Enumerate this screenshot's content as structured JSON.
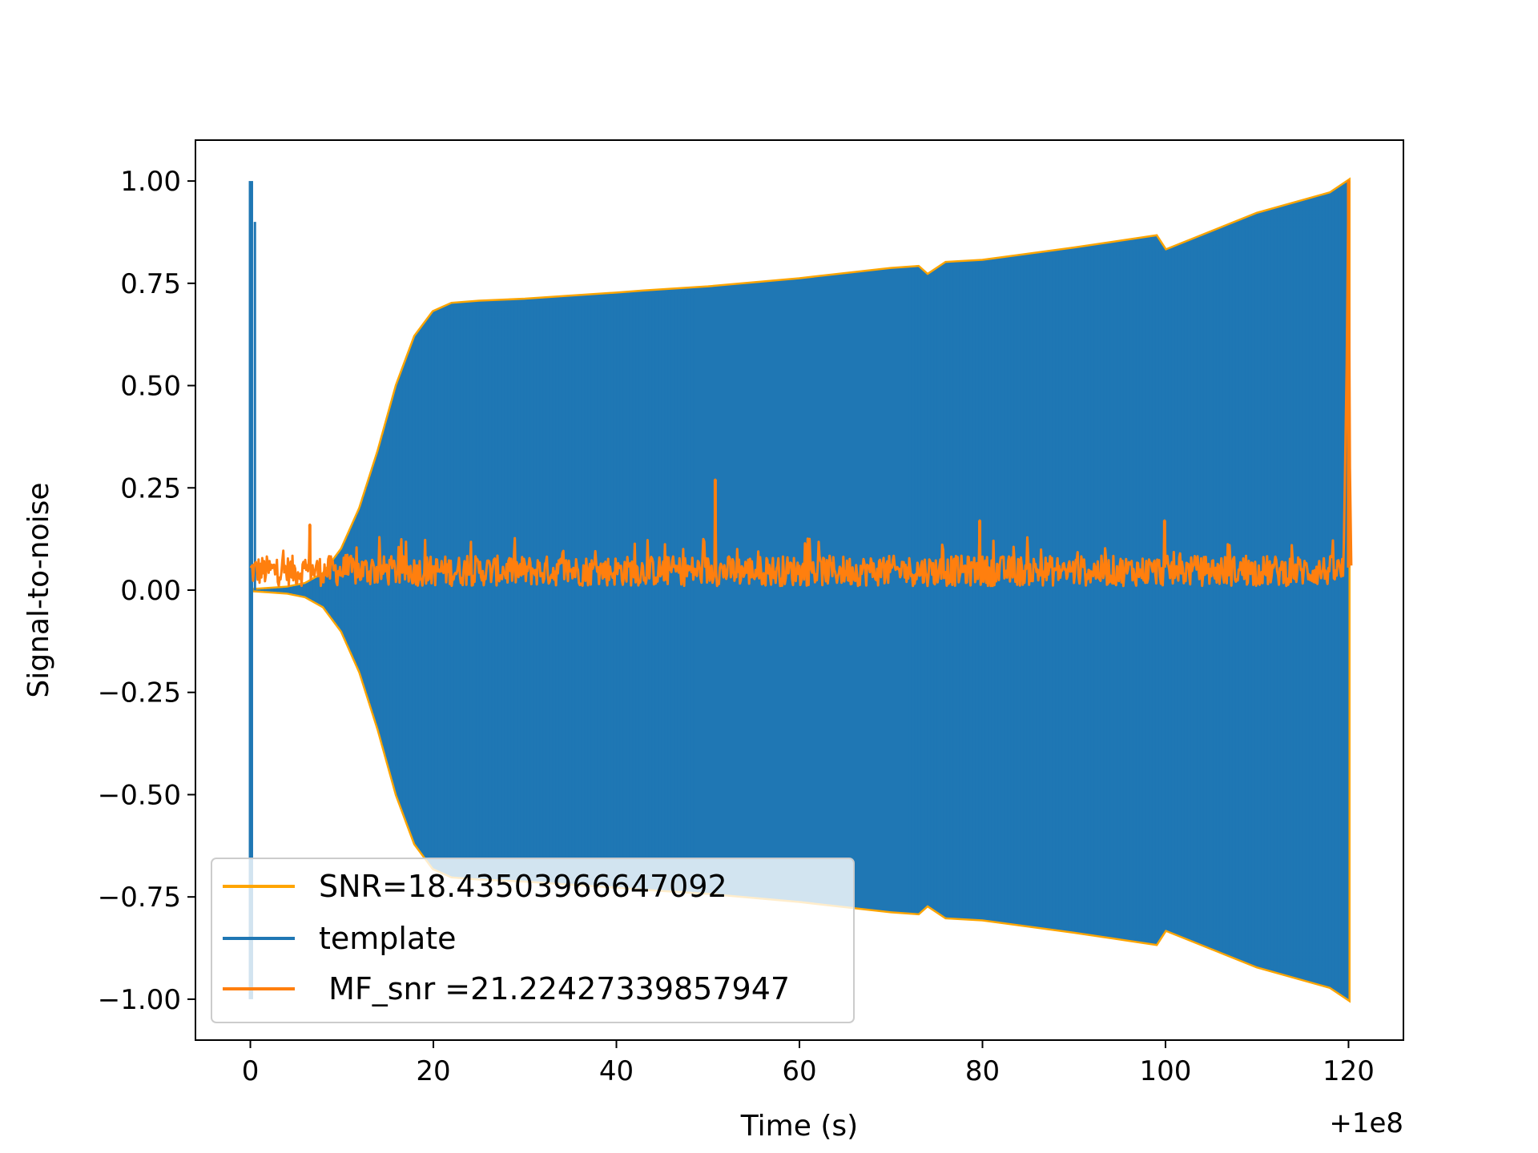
{
  "chart_data": {
    "type": "line",
    "title": "",
    "xlabel": "Time (s)",
    "ylabel": "Signal-to-noise",
    "x_offset_label": "+1e8",
    "xlim": [
      -6,
      126
    ],
    "ylim": [
      -1.1,
      1.1
    ],
    "xticks": [
      0,
      20,
      40,
      60,
      80,
      100,
      120
    ],
    "xtick_labels": [
      "0",
      "20",
      "40",
      "60",
      "80",
      "100",
      "120"
    ],
    "yticks": [
      1.0,
      0.75,
      0.5,
      0.25,
      0.0,
      -0.25,
      -0.5,
      -0.75,
      -1.0
    ],
    "ytick_labels": [
      "1.00",
      "0.75",
      "0.50",
      "0.25",
      "0.00",
      "−0.25",
      "−0.50",
      "−0.75",
      "−1.00"
    ],
    "grid": false,
    "legend_position": "lower-left",
    "colors": {
      "snr_envelope": "#FFA500",
      "template": "#1f77b4",
      "mf_snr": "#ff7f0e"
    },
    "series": [
      {
        "name": "SNR=18.43503966647092",
        "kind": "envelope",
        "x": [
          0,
          2,
          4,
          6,
          8,
          10,
          12,
          14,
          16,
          18,
          20,
          22,
          25,
          30,
          40,
          43,
          50,
          60,
          70,
          73,
          74,
          76,
          80,
          90,
          99,
          100,
          110,
          118,
          120
        ],
        "upper": [
          0.0,
          0.003,
          0.006,
          0.015,
          0.04,
          0.1,
          0.2,
          0.34,
          0.5,
          0.62,
          0.68,
          0.7,
          0.705,
          0.71,
          0.725,
          0.73,
          0.74,
          0.76,
          0.785,
          0.79,
          0.77,
          0.8,
          0.805,
          0.835,
          0.865,
          0.83,
          0.92,
          0.97,
          1.0
        ],
        "lower": [
          0.0,
          -0.003,
          -0.006,
          -0.015,
          -0.04,
          -0.1,
          -0.2,
          -0.34,
          -0.5,
          -0.62,
          -0.68,
          -0.7,
          -0.705,
          -0.71,
          -0.725,
          -0.73,
          -0.74,
          -0.76,
          -0.785,
          -0.79,
          -0.77,
          -0.8,
          -0.805,
          -0.835,
          -0.865,
          -0.83,
          -0.92,
          -0.97,
          -1.0
        ]
      },
      {
        "name": "template",
        "kind": "oscillation-band",
        "x": [
          0,
          2,
          4,
          6,
          8,
          10,
          12,
          14,
          16,
          18,
          20,
          22,
          25,
          30,
          40,
          43,
          50,
          60,
          70,
          73,
          74,
          76,
          80,
          90,
          99,
          100,
          110,
          118,
          120
        ],
        "upper": [
          0.0,
          0.003,
          0.006,
          0.015,
          0.04,
          0.1,
          0.2,
          0.34,
          0.5,
          0.62,
          0.68,
          0.7,
          0.705,
          0.71,
          0.725,
          0.73,
          0.74,
          0.76,
          0.785,
          0.79,
          0.77,
          0.8,
          0.805,
          0.835,
          0.865,
          0.83,
          0.92,
          0.97,
          1.0
        ],
        "lower": [
          0.0,
          -0.003,
          -0.006,
          -0.015,
          -0.04,
          -0.1,
          -0.2,
          -0.34,
          -0.5,
          -0.62,
          -0.68,
          -0.7,
          -0.705,
          -0.71,
          -0.725,
          -0.73,
          -0.74,
          -0.76,
          -0.785,
          -0.79,
          -0.77,
          -0.8,
          -0.805,
          -0.835,
          -0.865,
          -0.83,
          -0.92,
          -0.97,
          -1.0
        ],
        "spike_start": {
          "x": [
            0,
            0.3
          ],
          "upper": 1.0,
          "lower": -1.0
        }
      },
      {
        "name": " MF_snr =21.22427339857947",
        "kind": "noise",
        "x_range": [
          0,
          120
        ],
        "baseline": 0.055,
        "typical_max": 0.13,
        "typical_min": 0.0,
        "peaks": [
          {
            "x": 50.8,
            "y": 0.27
          },
          {
            "x": 6.5,
            "y": 0.16
          },
          {
            "x": 79.7,
            "y": 0.17
          },
          {
            "x": 99.9,
            "y": 0.17
          },
          {
            "x": 120,
            "y": 1.0
          }
        ]
      }
    ]
  },
  "legend": {
    "entries": [
      {
        "label": "SNR=18.43503966647092",
        "color": "#FFA500"
      },
      {
        "label": "template",
        "color": "#1f77b4"
      },
      {
        "label": " MF_snr =21.22427339857947",
        "color": "#ff7f0e"
      }
    ]
  }
}
